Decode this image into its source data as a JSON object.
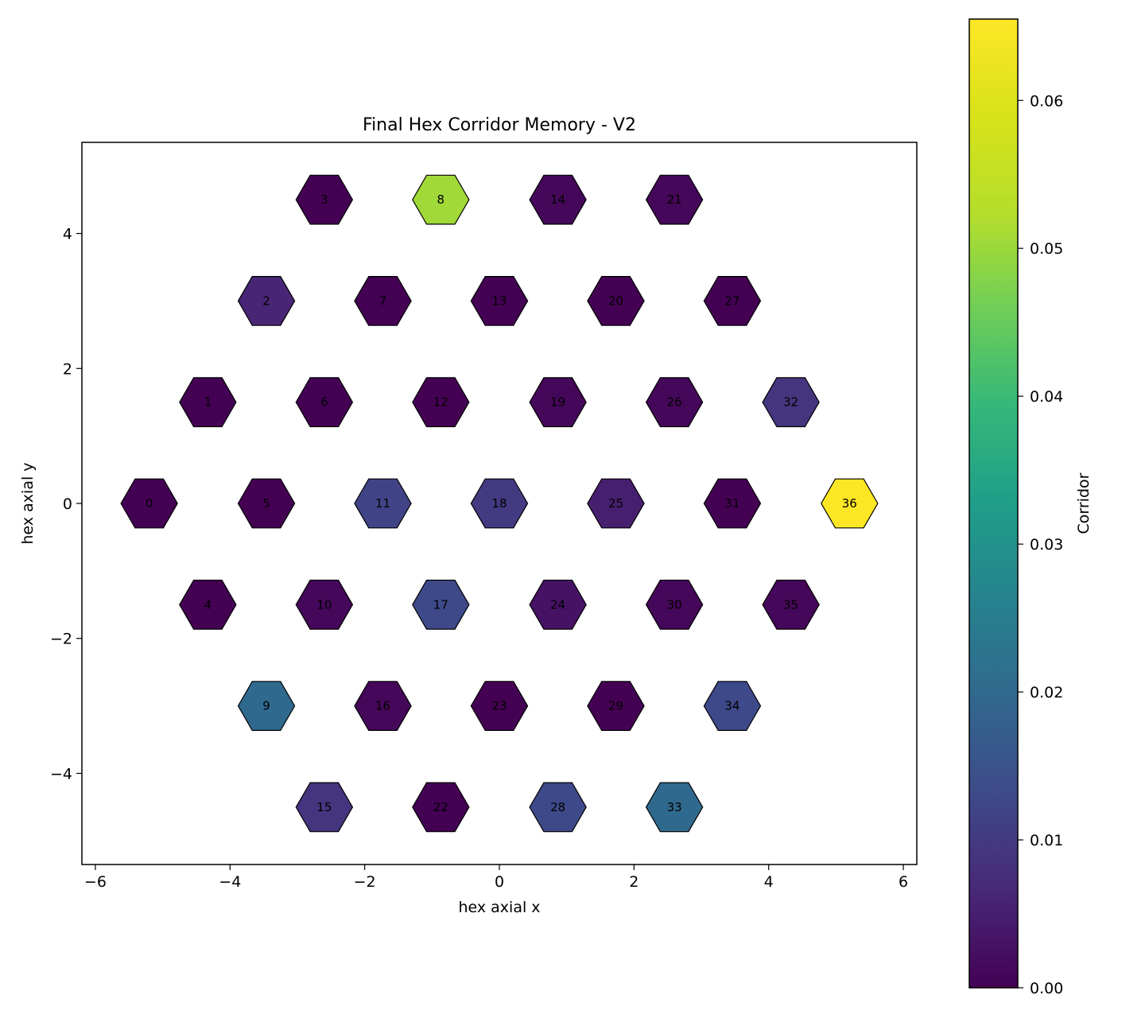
{
  "chart_data": {
    "type": "heatmap",
    "title": "Final Hex Corridor Memory - V2",
    "xlabel": "hex axial x",
    "ylabel": "hex axial y",
    "xlim": [
      -6.2,
      6.2
    ],
    "ylim": [
      -5.35,
      5.35
    ],
    "xticks": [
      -6,
      -4,
      -2,
      0,
      2,
      4,
      6
    ],
    "xtick_labels": [
      "−6",
      "−4",
      "−2",
      "0",
      "2",
      "4",
      "6"
    ],
    "yticks": [
      -4,
      -2,
      0,
      2,
      4
    ],
    "ytick_labels": [
      "−4",
      "−2",
      "0",
      "2",
      "4"
    ],
    "grid": false,
    "colormap": "viridis",
    "colorbar": {
      "label": "Corridor",
      "range": [
        0.0,
        0.0655
      ],
      "ticks": [
        0.0,
        0.01,
        0.02,
        0.03,
        0.04,
        0.05,
        0.06
      ],
      "tick_labels": [
        "0.00",
        "0.01",
        "0.02",
        "0.03",
        "0.04",
        "0.05",
        "0.06"
      ]
    },
    "cells": [
      {
        "id": "0",
        "x": -5.2,
        "y": 0.0,
        "value": 0.0
      },
      {
        "id": "1",
        "x": -4.33,
        "y": 1.5,
        "value": 0.0
      },
      {
        "id": "2",
        "x": -3.46,
        "y": 3.0,
        "value": 0.006
      },
      {
        "id": "3",
        "x": -2.6,
        "y": 4.5,
        "value": 0.0
      },
      {
        "id": "4",
        "x": -4.33,
        "y": -1.5,
        "value": 0.0
      },
      {
        "id": "5",
        "x": -3.46,
        "y": 0.0,
        "value": 0.0
      },
      {
        "id": "6",
        "x": -2.6,
        "y": 1.5,
        "value": 0.0
      },
      {
        "id": "7",
        "x": -1.73,
        "y": 3.0,
        "value": 0.0
      },
      {
        "id": "8",
        "x": -0.87,
        "y": 4.5,
        "value": 0.0505
      },
      {
        "id": "9",
        "x": -3.46,
        "y": -3.0,
        "value": 0.02
      },
      {
        "id": "10",
        "x": -2.6,
        "y": -1.5,
        "value": 0.001
      },
      {
        "id": "11",
        "x": -1.73,
        "y": 0.0,
        "value": 0.012
      },
      {
        "id": "12",
        "x": -0.87,
        "y": 1.5,
        "value": 0.0
      },
      {
        "id": "13",
        "x": 0.0,
        "y": 3.0,
        "value": 0.0
      },
      {
        "id": "14",
        "x": 0.87,
        "y": 4.5,
        "value": 0.001
      },
      {
        "id": "15",
        "x": -2.6,
        "y": -4.5,
        "value": 0.009
      },
      {
        "id": "16",
        "x": -1.73,
        "y": -3.0,
        "value": 0.001
      },
      {
        "id": "17",
        "x": -0.87,
        "y": -1.5,
        "value": 0.013
      },
      {
        "id": "18",
        "x": 0.0,
        "y": 0.0,
        "value": 0.01
      },
      {
        "id": "19",
        "x": 0.87,
        "y": 1.5,
        "value": 0.001
      },
      {
        "id": "20",
        "x": 1.73,
        "y": 3.0,
        "value": 0.0
      },
      {
        "id": "21",
        "x": 2.6,
        "y": 4.5,
        "value": 0.001
      },
      {
        "id": "22",
        "x": -0.87,
        "y": -4.5,
        "value": 0.0
      },
      {
        "id": "23",
        "x": 0.0,
        "y": -3.0,
        "value": 0.0
      },
      {
        "id": "24",
        "x": 0.87,
        "y": -1.5,
        "value": 0.003
      },
      {
        "id": "25",
        "x": 1.73,
        "y": 0.0,
        "value": 0.005
      },
      {
        "id": "26",
        "x": 2.6,
        "y": 1.5,
        "value": 0.001
      },
      {
        "id": "27",
        "x": 3.46,
        "y": 3.0,
        "value": 0.0
      },
      {
        "id": "28",
        "x": 0.87,
        "y": -4.5,
        "value": 0.013
      },
      {
        "id": "29",
        "x": 1.73,
        "y": -3.0,
        "value": 0.0
      },
      {
        "id": "30",
        "x": 2.6,
        "y": -1.5,
        "value": 0.001
      },
      {
        "id": "31",
        "x": 3.46,
        "y": 0.0,
        "value": 0.0
      },
      {
        "id": "32",
        "x": 4.33,
        "y": 1.5,
        "value": 0.009
      },
      {
        "id": "33",
        "x": 2.6,
        "y": -4.5,
        "value": 0.02
      },
      {
        "id": "34",
        "x": 3.46,
        "y": -3.0,
        "value": 0.013
      },
      {
        "id": "35",
        "x": 4.33,
        "y": -1.5,
        "value": 0.001
      },
      {
        "id": "36",
        "x": 5.2,
        "y": 0.0,
        "value": 0.0655
      }
    ]
  }
}
